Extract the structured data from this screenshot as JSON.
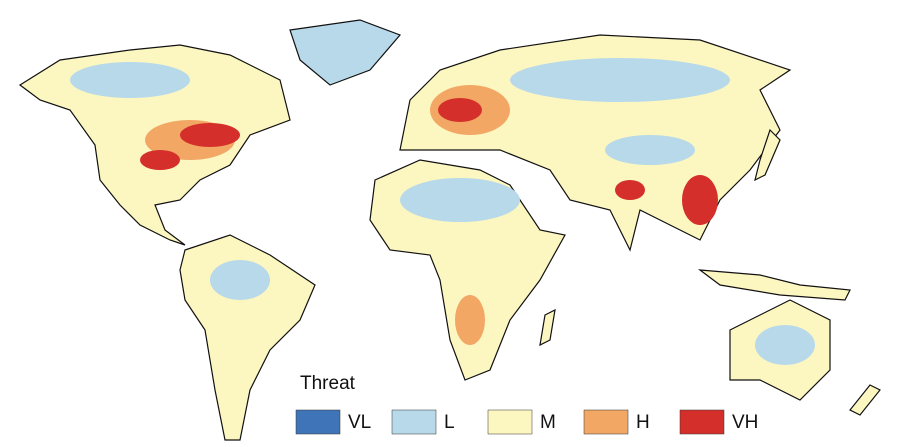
{
  "legend": {
    "title": "Threat",
    "items": [
      {
        "label": "VL",
        "color": "#3f74b8"
      },
      {
        "label": "L",
        "color": "#b7d9ea"
      },
      {
        "label": "M",
        "color": "#fcf6c0"
      },
      {
        "label": "H",
        "color": "#f2a765"
      },
      {
        "label": "VH",
        "color": "#d42f2a"
      }
    ]
  }
}
